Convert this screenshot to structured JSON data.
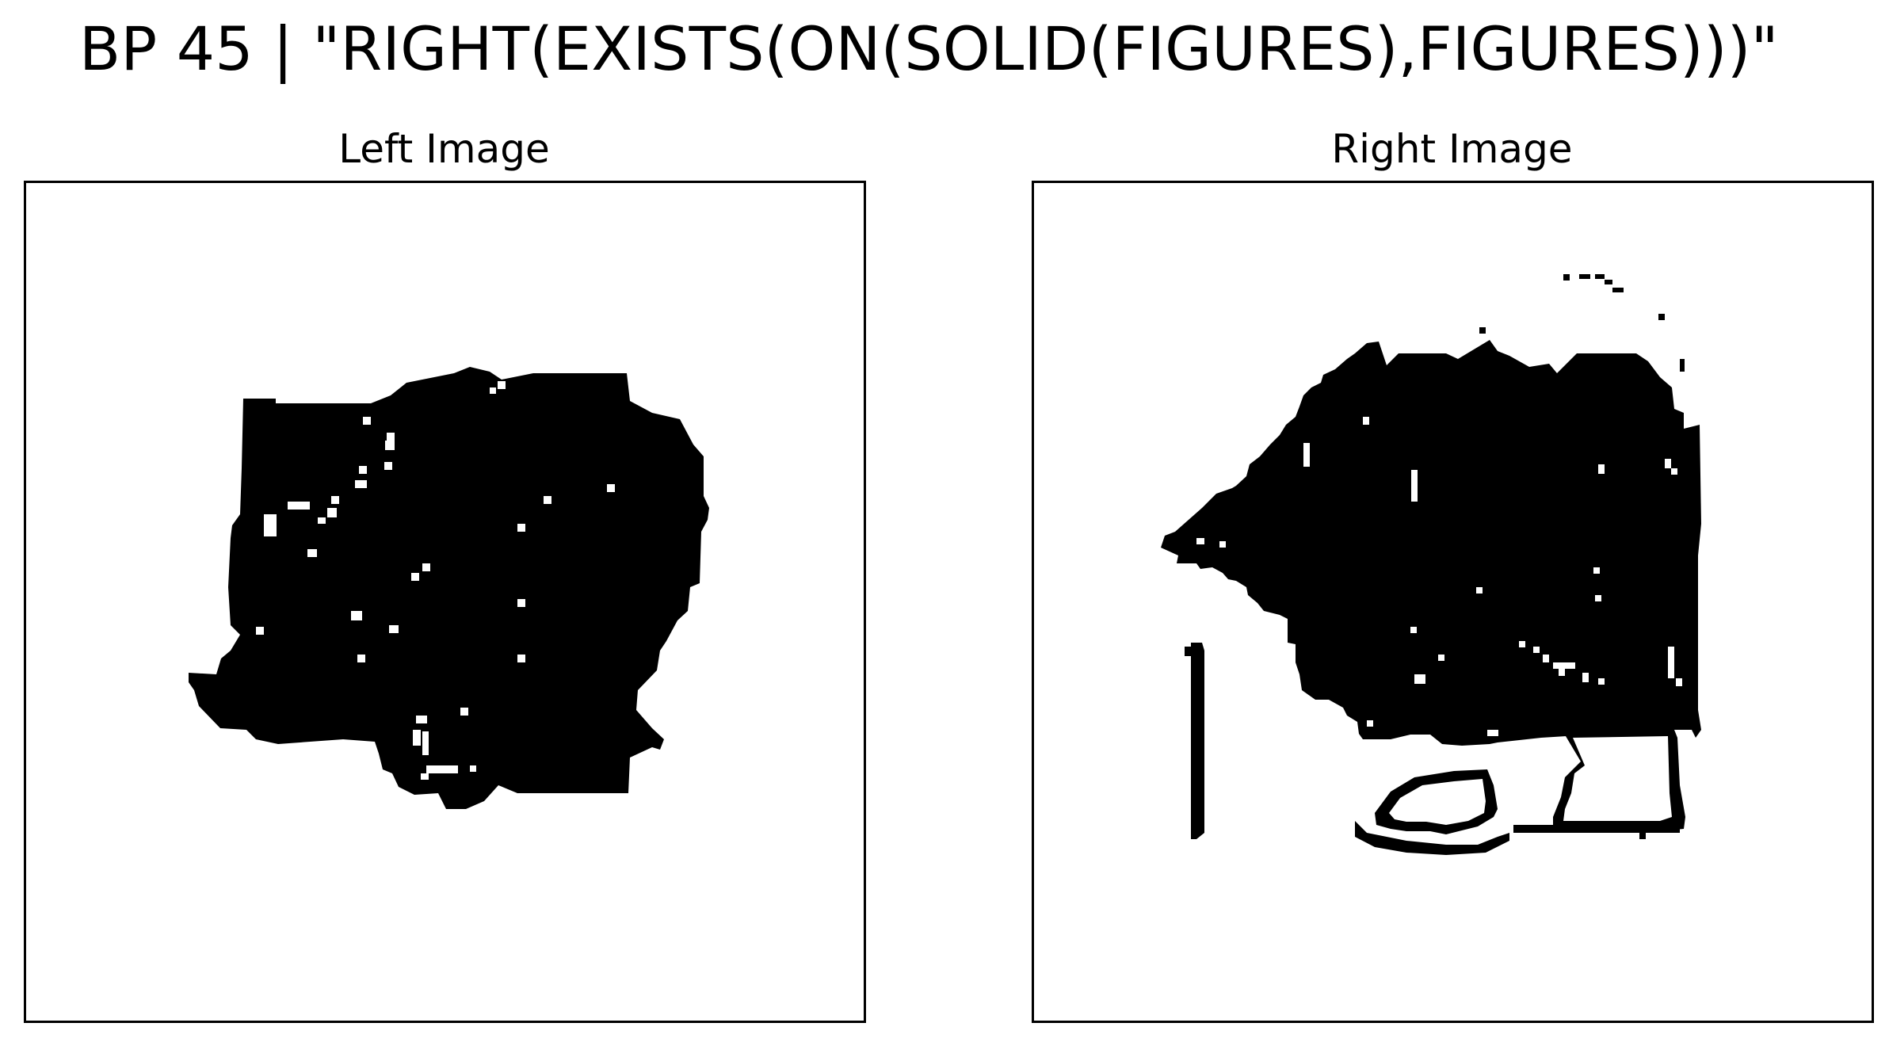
{
  "title": "BP 45 | \"RIGHT(EXISTS(ON(SOLID(FIGURES),FIGURES)))\"",
  "panels": {
    "left": {
      "label": "Left Image",
      "content": "black-blob-figure"
    },
    "right": {
      "label": "Right Image",
      "content": "black-blob-on-outline-figure"
    }
  },
  "colors": {
    "foreground": "#000000",
    "background": "#ffffff"
  }
}
